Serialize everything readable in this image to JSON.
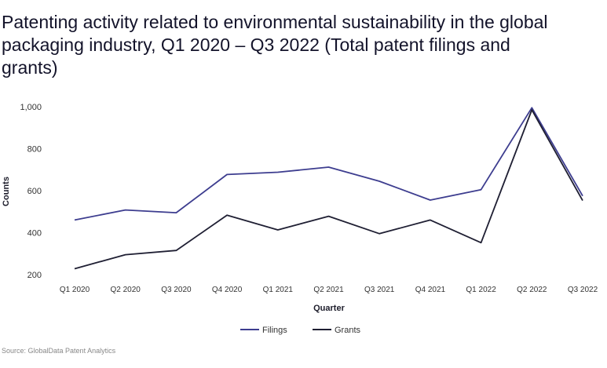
{
  "title": "Patenting activity related to environmental sustainability in the global packaging industry, Q1 2020 – Q3 2022 (Total patent filings and grants)",
  "source": "Source: GlobalData Patent Analytics",
  "chart_data": {
    "type": "line",
    "title": "Patenting activity related to environmental sustainability in the global packaging industry, Q1 2020 – Q3 2022 (Total patent filings and grants)",
    "xlabel": "Quarter",
    "ylabel": "Counts",
    "categories": [
      "Q1 2020",
      "Q2 2020",
      "Q3 2020",
      "Q4 2020",
      "Q1 2021",
      "Q2 2021",
      "Q3 2021",
      "Q4 2021",
      "Q1 2022",
      "Q2 2022",
      "Q3 2022"
    ],
    "y_ticks": [
      200,
      400,
      600,
      800,
      1000
    ],
    "y_tick_labels": [
      "200",
      "400",
      "600",
      "800",
      "1,000"
    ],
    "ylim": [
      200,
      1000
    ],
    "grid": false,
    "legend_position": "bottom",
    "series": [
      {
        "name": "Filings",
        "color": "#3d3d8f",
        "values": [
          460,
          508,
          495,
          677,
          688,
          712,
          645,
          555,
          605,
          995,
          575
        ]
      },
      {
        "name": "Grants",
        "color": "#1f1f33",
        "values": [
          228,
          295,
          315,
          483,
          413,
          478,
          395,
          460,
          352,
          985,
          553
        ]
      }
    ]
  }
}
